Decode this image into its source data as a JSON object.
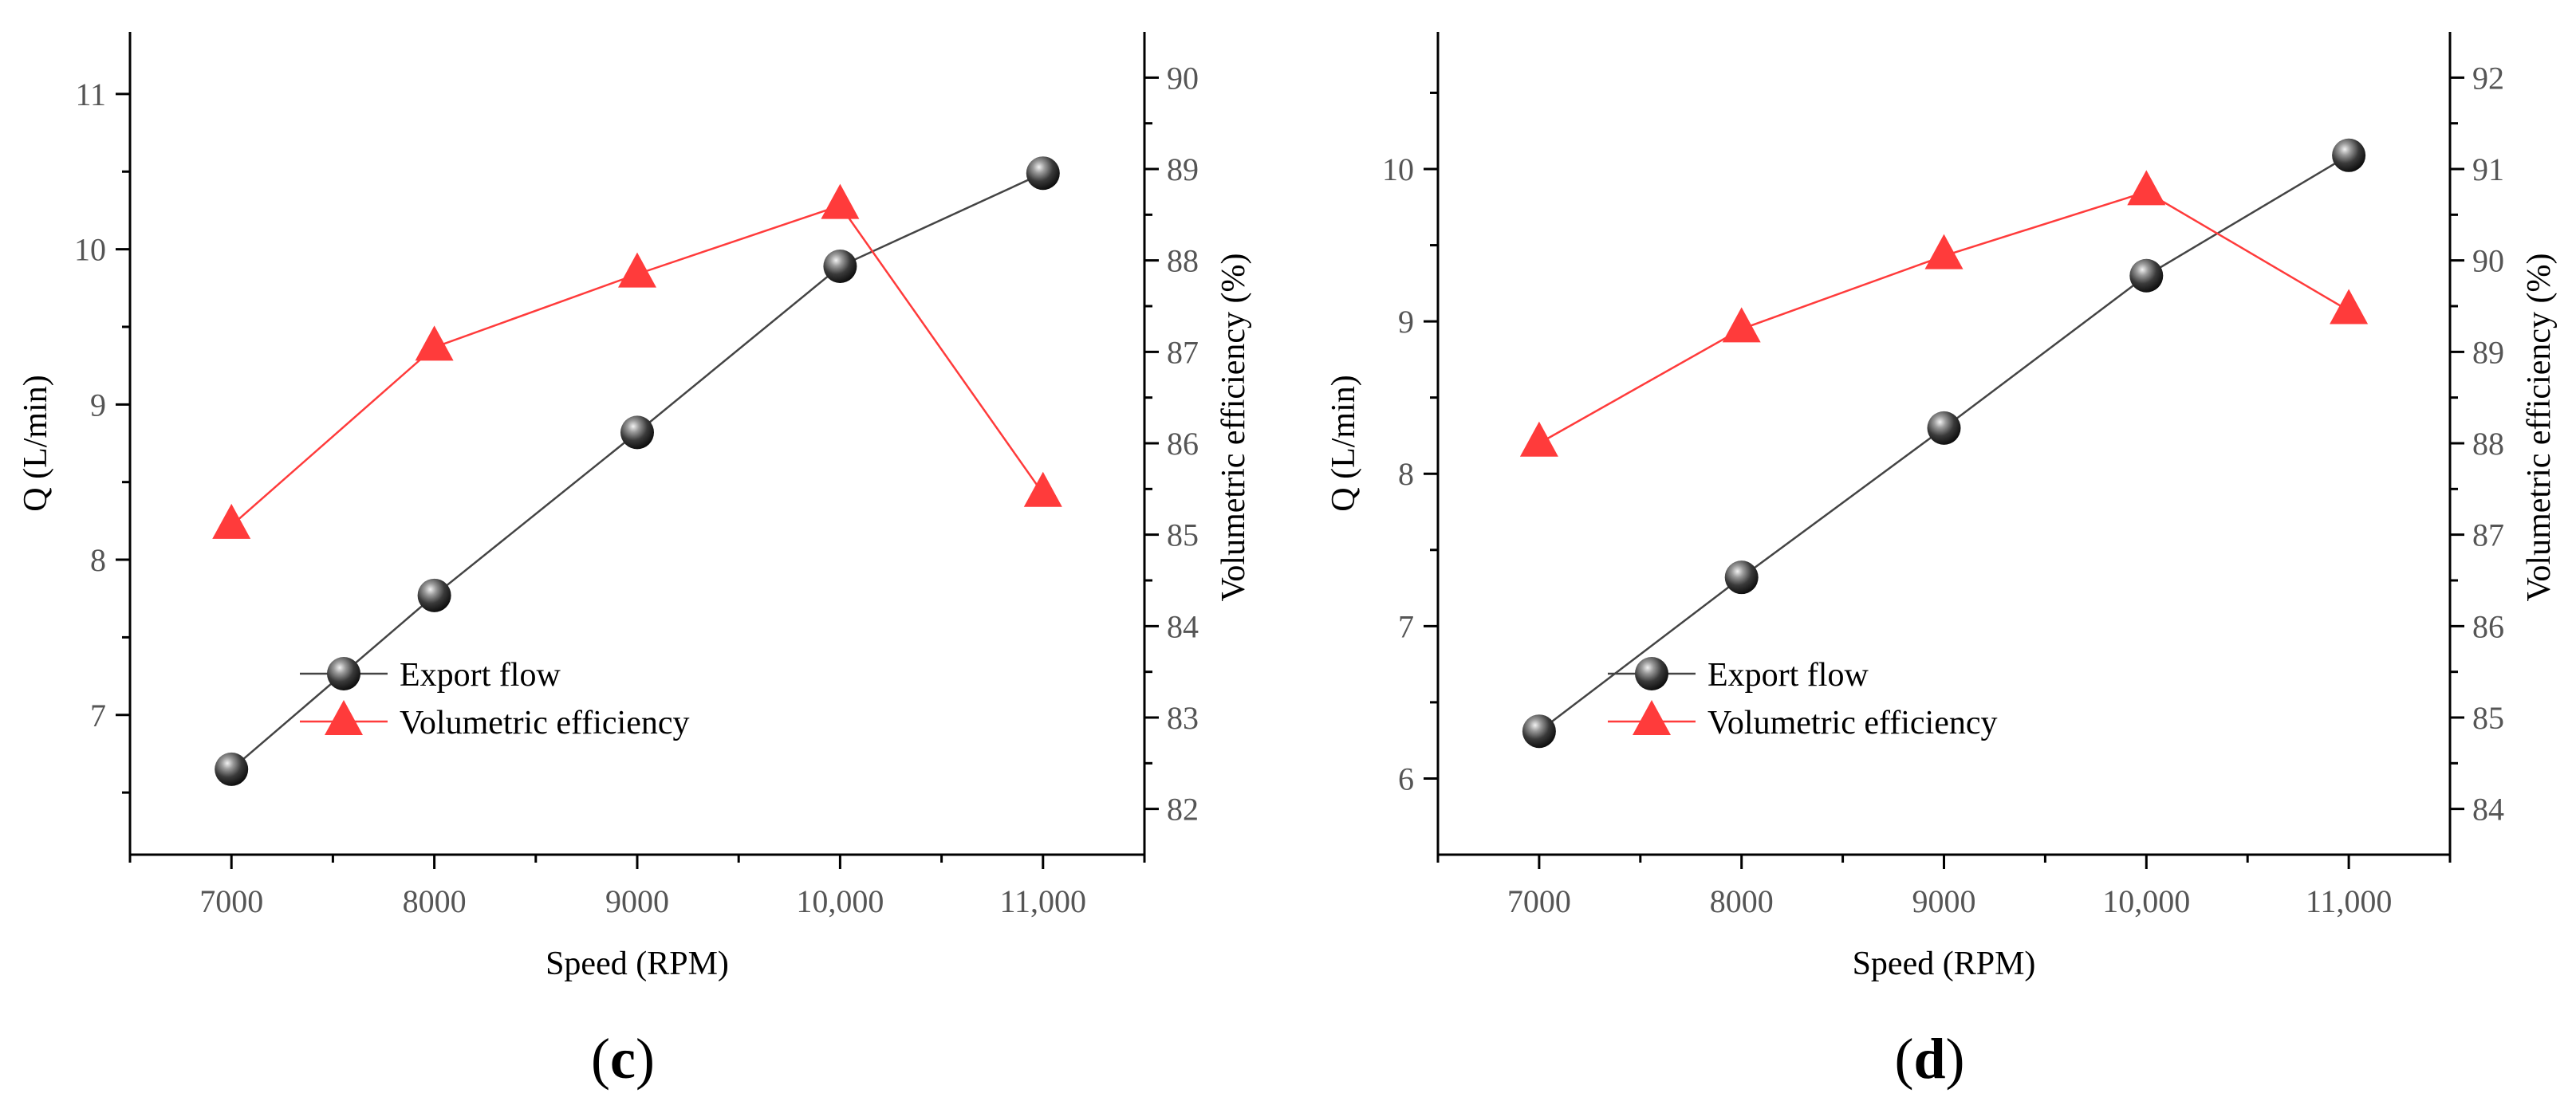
{
  "figure": {
    "panels": [
      "c",
      "d"
    ]
  },
  "colors": {
    "export_flow": "#444444",
    "volumetric_efficiency": "#ff3b3b",
    "axis": "#000000",
    "tick_label": "#555555"
  },
  "chart_data": [
    {
      "type": "line",
      "panel_label": "c",
      "title": "",
      "xlabel": "Speed (RPM)",
      "ylabel": "Q (L/min)",
      "y2label": "Volumetric efficiency (%)",
      "x": [
        7000,
        8000,
        9000,
        10000,
        11000
      ],
      "xticks": [
        "7000",
        "8000",
        "9000",
        "10,000",
        "11,000"
      ],
      "xlim": [
        6500,
        11500
      ],
      "ylim": [
        6.1,
        11.4
      ],
      "yticks": [
        7,
        8,
        9,
        10,
        11
      ],
      "y2lim": [
        81.5,
        90.5
      ],
      "y2ticks": [
        82,
        83,
        84,
        85,
        86,
        87,
        88,
        89,
        90
      ],
      "grid": false,
      "legend_position": "center",
      "series": [
        {
          "name": "Export flow",
          "axis": "left",
          "marker": "sphere",
          "values": [
            6.65,
            7.77,
            8.82,
            9.89,
            10.49
          ]
        },
        {
          "name": "Volumetric efficiency",
          "axis": "right",
          "marker": "triangle",
          "values": [
            85.1,
            87.05,
            87.85,
            88.6,
            85.45
          ]
        }
      ]
    },
    {
      "type": "line",
      "panel_label": "d",
      "title": "",
      "xlabel": "Speed (RPM)",
      "ylabel": "Q (L/min)",
      "y2label": "Volumetric efficiency (%)",
      "x": [
        7000,
        8000,
        9000,
        10000,
        11000
      ],
      "xticks": [
        "7000",
        "8000",
        "9000",
        "10,000",
        "11,000"
      ],
      "xlim": [
        6500,
        11500
      ],
      "ylim": [
        5.5,
        10.9
      ],
      "yticks": [
        6,
        7,
        8,
        9,
        10
      ],
      "y2lim": [
        83.5,
        92.5
      ],
      "y2ticks": [
        84,
        85,
        86,
        87,
        88,
        89,
        90,
        91,
        92
      ],
      "grid": false,
      "legend_position": "center",
      "series": [
        {
          "name": "Export flow",
          "axis": "left",
          "marker": "sphere",
          "values": [
            6.31,
            7.32,
            8.3,
            9.3,
            10.09
          ]
        },
        {
          "name": "Volumetric efficiency",
          "axis": "right",
          "marker": "triangle",
          "values": [
            88.0,
            89.25,
            90.05,
            90.75,
            89.45
          ]
        }
      ]
    }
  ]
}
